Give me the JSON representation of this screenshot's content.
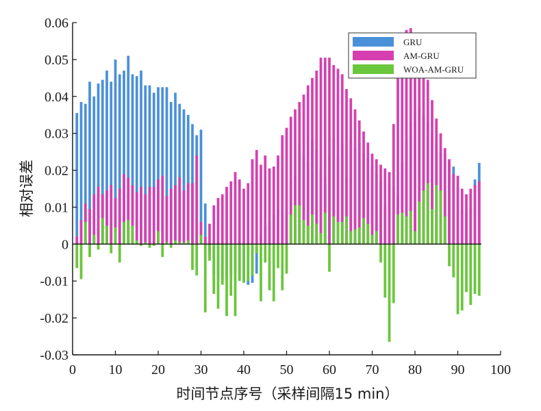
{
  "chart_data": {
    "type": "bar",
    "xlabel": "时间节点序号（采样间隔15 min）",
    "ylabel": "相对误差",
    "xlim": [
      0,
      100
    ],
    "ylim": [
      -0.03,
      0.06
    ],
    "x_ticks": [
      "0",
      "10",
      "20",
      "30",
      "40",
      "50",
      "60",
      "70",
      "80",
      "90",
      "100"
    ],
    "y_ticks": [
      "-0.03",
      "-0.02",
      "-0.01",
      "0",
      "0.01",
      "0.02",
      "0.03",
      "0.04",
      "0.05",
      "0.06"
    ],
    "legend_position": "top-right",
    "x": [
      1,
      2,
      3,
      4,
      5,
      6,
      7,
      8,
      9,
      10,
      11,
      12,
      13,
      14,
      15,
      16,
      17,
      18,
      19,
      20,
      21,
      22,
      23,
      24,
      25,
      26,
      27,
      28,
      29,
      30,
      31,
      32,
      33,
      34,
      35,
      36,
      37,
      38,
      39,
      40,
      41,
      42,
      43,
      44,
      45,
      46,
      47,
      48,
      49,
      50,
      51,
      52,
      53,
      54,
      55,
      56,
      57,
      58,
      59,
      60,
      61,
      62,
      63,
      64,
      65,
      66,
      67,
      68,
      69,
      70,
      71,
      72,
      73,
      74,
      75,
      76,
      77,
      78,
      79,
      80,
      81,
      82,
      83,
      84,
      85,
      86,
      87,
      88,
      89,
      90,
      91,
      92,
      93,
      94,
      95
    ],
    "series": [
      {
        "name": "GRU",
        "color": "#4a90d9",
        "values": [
          0.0355,
          0.0385,
          0.038,
          0.044,
          0.04,
          0.0435,
          0.0445,
          0.047,
          0.044,
          0.05,
          0.046,
          0.047,
          0.051,
          0.046,
          0.0455,
          0.047,
          0.043,
          0.043,
          0.041,
          0.0425,
          0.0425,
          0.0425,
          0.0385,
          0.041,
          0.038,
          0.0365,
          0.035,
          0.0325,
          0.0295,
          0.031,
          0.011,
          -0.003,
          -0.008,
          -0.0095,
          -0.01,
          -0.0095,
          -0.0085,
          -0.008,
          -0.0095,
          -0.01,
          -0.011,
          -0.0105,
          -0.008,
          0.002,
          0.005,
          0.006,
          0.008,
          0.0095,
          0.0085,
          0.01,
          0.0175,
          0.0185,
          0.027,
          0.024,
          0.0225,
          0.028,
          0.0255,
          0.02,
          0.018,
          0.024,
          0.0285,
          0.024,
          0.027,
          0.018,
          0.0285,
          0.026,
          0.0275,
          0.0245,
          0.0235,
          0.0215,
          0.019,
          0.017,
          0.0105,
          0.0165,
          0.0155,
          0.013,
          0.022,
          0.0285,
          0.033,
          0.036,
          0.037,
          0.035,
          0.033,
          0.03,
          0.027,
          0.025,
          0.0245,
          0.022,
          0.021,
          0.0155,
          0.009,
          0.0085,
          0.0095,
          0.0175,
          0.022
        ]
      },
      {
        "name": "AM-GRU",
        "color": "#d63fb0",
        "values": [
          0.002,
          0.0065,
          0.011,
          0.0095,
          0.0135,
          0.0155,
          0.0135,
          0.0145,
          0.016,
          0.0125,
          0.015,
          0.019,
          0.018,
          0.016,
          0.014,
          0.0155,
          0.0135,
          0.0155,
          0.0155,
          0.0175,
          0.0185,
          0.013,
          0.015,
          0.016,
          0.018,
          0.0145,
          0.0165,
          0.0165,
          0.024,
          0.006,
          0.002,
          0.0055,
          0.0105,
          0.0125,
          0.0135,
          0.0155,
          0.017,
          0.0195,
          0.0175,
          0.015,
          0.0165,
          0.023,
          0.0255,
          0.0215,
          0.024,
          0.0205,
          0.021,
          0.024,
          0.0295,
          0.0315,
          0.0345,
          0.0365,
          0.0385,
          0.0405,
          0.043,
          0.045,
          0.047,
          0.0505,
          0.0505,
          0.0505,
          0.0485,
          0.0475,
          0.046,
          0.042,
          0.0395,
          0.0365,
          0.0335,
          0.0305,
          0.0275,
          0.0245,
          0.023,
          0.0215,
          0.0205,
          0.0195,
          0.0325,
          0.046,
          0.054,
          0.058,
          0.0585,
          0.057,
          0.054,
          0.05,
          0.0445,
          0.039,
          0.034,
          0.03,
          0.026,
          0.023,
          0.019,
          0.0185,
          0.015,
          0.0135,
          0.015,
          0.016,
          0.017
        ]
      },
      {
        "name": "WOA-AM-GRU",
        "color": "#6ac63b",
        "values": [
          -0.0065,
          -0.0095,
          0.006,
          -0.0035,
          0.0025,
          -0.0015,
          0.007,
          0.005,
          -0.0025,
          0.0045,
          -0.005,
          0.006,
          0.0065,
          0.005,
          0.001,
          -0.0005,
          0.0005,
          -0.001,
          -0.0005,
          0.0035,
          -0.0035,
          0.0005,
          -0.001,
          0.001,
          0.0005,
          0.0005,
          0.001,
          -0.007,
          -0.0085,
          0.0025,
          -0.0185,
          -0.0045,
          -0.0135,
          -0.0175,
          -0.011,
          -0.0195,
          -0.014,
          -0.0195,
          -0.01,
          -0.0105,
          -0.01,
          -0.0085,
          -0.0025,
          -0.0155,
          -0.005,
          -0.0125,
          -0.0155,
          -0.0065,
          -0.0125,
          -0.008,
          0.008,
          0.0105,
          0.0105,
          0.0065,
          0.005,
          0.008,
          0.0055,
          0.003,
          0.0085,
          -0.0075,
          0.0075,
          0.006,
          0.006,
          0.0075,
          0.0035,
          0.004,
          0.0045,
          0.007,
          0.0055,
          0.0025,
          0.0035,
          -0.005,
          -0.0145,
          -0.0265,
          -0.016,
          0.008,
          0.0085,
          0.0075,
          0.009,
          0.0035,
          0.0115,
          0.0145,
          0.0165,
          0.0095,
          0.016,
          0.0145,
          0.0075,
          -0.006,
          -0.009,
          -0.019,
          -0.018,
          -0.013,
          -0.0165,
          -0.0135,
          -0.014
        ]
      }
    ]
  }
}
